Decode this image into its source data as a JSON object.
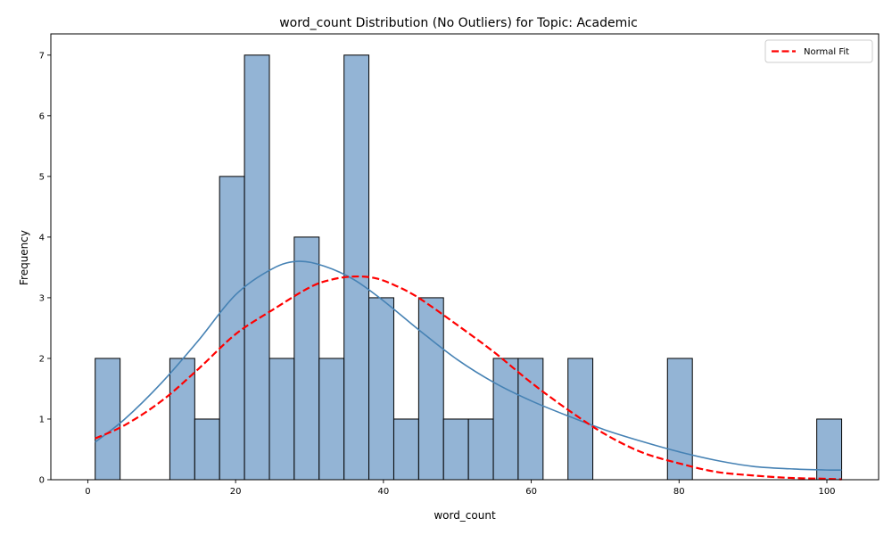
{
  "chart_data": {
    "type": "bar",
    "title": "word_count Distribution (No Outliers) for Topic: Academic",
    "xlabel": "word_count",
    "ylabel": "Frequency",
    "xlim": [
      -5,
      107
    ],
    "ylim": [
      0,
      7.35
    ],
    "xticks": [
      0,
      20,
      40,
      60,
      80,
      100
    ],
    "yticks": [
      0,
      1,
      2,
      3,
      4,
      5,
      6,
      7
    ],
    "grid": false,
    "legend": {
      "position": "top-right",
      "entries": [
        "Normal Fit"
      ]
    },
    "bins": [
      {
        "x0": 1.0,
        "x1": 4.37,
        "count": 2
      },
      {
        "x0": 4.37,
        "x1": 7.73,
        "count": 0
      },
      {
        "x0": 7.73,
        "x1": 11.1,
        "count": 0
      },
      {
        "x0": 11.1,
        "x1": 14.47,
        "count": 2
      },
      {
        "x0": 14.47,
        "x1": 17.83,
        "count": 1
      },
      {
        "x0": 17.83,
        "x1": 21.2,
        "count": 5
      },
      {
        "x0": 21.2,
        "x1": 24.57,
        "count": 7
      },
      {
        "x0": 24.57,
        "x1": 27.93,
        "count": 2
      },
      {
        "x0": 27.93,
        "x1": 31.3,
        "count": 4
      },
      {
        "x0": 31.3,
        "x1": 34.67,
        "count": 2
      },
      {
        "x0": 34.67,
        "x1": 38.03,
        "count": 7
      },
      {
        "x0": 38.03,
        "x1": 41.4,
        "count": 3
      },
      {
        "x0": 41.4,
        "x1": 44.77,
        "count": 1
      },
      {
        "x0": 44.77,
        "x1": 48.13,
        "count": 3
      },
      {
        "x0": 48.13,
        "x1": 51.5,
        "count": 1
      },
      {
        "x0": 51.5,
        "x1": 54.87,
        "count": 1
      },
      {
        "x0": 54.87,
        "x1": 58.23,
        "count": 2
      },
      {
        "x0": 58.23,
        "x1": 61.6,
        "count": 2
      },
      {
        "x0": 61.6,
        "x1": 64.97,
        "count": 0
      },
      {
        "x0": 64.97,
        "x1": 68.33,
        "count": 2
      },
      {
        "x0": 68.33,
        "x1": 71.7,
        "count": 0
      },
      {
        "x0": 71.7,
        "x1": 75.07,
        "count": 0
      },
      {
        "x0": 75.07,
        "x1": 78.43,
        "count": 0
      },
      {
        "x0": 78.43,
        "x1": 81.8,
        "count": 2
      },
      {
        "x0": 81.8,
        "x1": 85.17,
        "count": 0
      },
      {
        "x0": 85.17,
        "x1": 88.53,
        "count": 0
      },
      {
        "x0": 88.53,
        "x1": 91.9,
        "count": 0
      },
      {
        "x0": 91.9,
        "x1": 95.27,
        "count": 0
      },
      {
        "x0": 95.27,
        "x1": 98.63,
        "count": 0
      },
      {
        "x0": 98.63,
        "x1": 102.0,
        "count": 1
      }
    ],
    "series": [
      {
        "name": "KDE",
        "style": "solid",
        "color": "#4682b4",
        "x": [
          1,
          5,
          10,
          15,
          20,
          25,
          28.5,
          32,
          36,
          40,
          45,
          50,
          55,
          60,
          65,
          70,
          75,
          80,
          85,
          90,
          95,
          100,
          102
        ],
        "y": [
          0.62,
          1.0,
          1.6,
          2.3,
          3.05,
          3.48,
          3.6,
          3.52,
          3.3,
          2.95,
          2.45,
          1.98,
          1.6,
          1.3,
          1.05,
          0.82,
          0.63,
          0.46,
          0.32,
          0.22,
          0.18,
          0.16,
          0.16
        ]
      },
      {
        "name": "Normal Fit",
        "style": "dashed",
        "color": "#ff0000",
        "x": [
          1,
          5,
          10,
          15,
          20,
          25,
          30,
          33,
          36,
          39,
          42,
          45,
          50,
          55,
          60,
          65,
          70,
          75,
          80,
          85,
          90,
          95,
          100,
          102
        ],
        "y": [
          0.68,
          0.9,
          1.3,
          1.83,
          2.4,
          2.8,
          3.17,
          3.3,
          3.35,
          3.32,
          3.18,
          2.98,
          2.55,
          2.1,
          1.6,
          1.15,
          0.75,
          0.45,
          0.27,
          0.13,
          0.07,
          0.03,
          0.015,
          0.005
        ]
      }
    ],
    "colors": {
      "bar_fill": "#93b4d5",
      "bar_edge": "#000000",
      "kde": "#4682b4",
      "normal_fit": "#ff0000"
    }
  }
}
